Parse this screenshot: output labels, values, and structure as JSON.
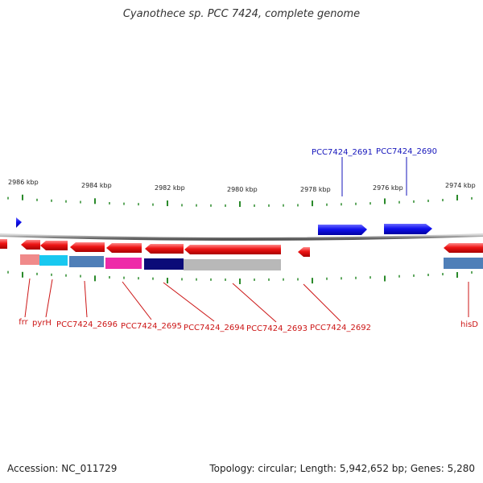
{
  "title": "Cyanothece sp. PCC 7424, complete genome",
  "footer": {
    "accession": "Accession: NC_011729",
    "meta": "Topology: circular; Length: 5,942,652 bp; Genes: 5,280"
  },
  "colors": {
    "forward_gene": "#1010ee",
    "reverse_gene": "#ee1010",
    "forward_label": "#1515bb",
    "reverse_label": "#cc1515",
    "backbone": "#8a8a8a",
    "tick": "#2a8a2a"
  },
  "ticks": [
    {
      "label": "2986 kbp",
      "kbp": 2986
    },
    {
      "label": "2984 kbp",
      "kbp": 2984
    },
    {
      "label": "2982 kbp",
      "kbp": 2982
    },
    {
      "label": "2980 kbp",
      "kbp": 2980
    },
    {
      "label": "2978 kbp",
      "kbp": 2978
    },
    {
      "label": "2976 kbp",
      "kbp": 2976
    },
    {
      "label": "2974 kbp",
      "kbp": 2974
    }
  ],
  "forward_genes": [
    {
      "id": "fwd-small",
      "label": ""
    },
    {
      "id": "PCC7424_2691",
      "label": "PCC7424_2691"
    },
    {
      "id": "PCC7424_2690",
      "label": "PCC7424_2690"
    }
  ],
  "reverse_genes": [
    {
      "id": "rev-left-edge",
      "label": ""
    },
    {
      "id": "frr",
      "label": "frr"
    },
    {
      "id": "pyrH",
      "label": "pyrH"
    },
    {
      "id": "PCC7424_2696",
      "label": "PCC7424_2696"
    },
    {
      "id": "PCC7424_2695",
      "label": "PCC7424_2695"
    },
    {
      "id": "PCC7424_2694",
      "label": "PCC7424_2694"
    },
    {
      "id": "PCC7424_2693",
      "label": "PCC7424_2693"
    },
    {
      "id": "PCC7424_2692",
      "label": "PCC7424_2692"
    },
    {
      "id": "hisD",
      "label": "hisD"
    }
  ],
  "category_blocks": [
    {
      "gene": "frr",
      "color": "#f08a8a"
    },
    {
      "gene": "pyrH",
      "color": "#18c8f0"
    },
    {
      "gene": "PCC7424_2696",
      "color": "#4f7fb8"
    },
    {
      "gene": "PCC7424_2695",
      "color": "#ee2aa8"
    },
    {
      "gene": "PCC7424_2694",
      "color": "#0b0b78"
    },
    {
      "gene": "PCC7424_2693",
      "color": "#b8b8b8"
    },
    {
      "gene": "hisD",
      "color": "#4f7fb8"
    }
  ]
}
